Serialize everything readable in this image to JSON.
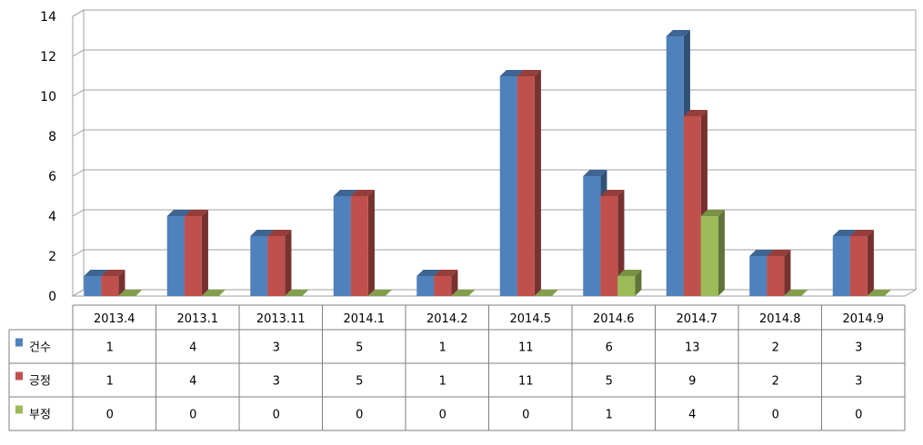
{
  "chart_data": {
    "type": "bar",
    "categories": [
      "2013.4",
      "2013.1",
      "2013.11",
      "2014.1",
      "2014.2",
      "2014.5",
      "2014.6",
      "2014.7",
      "2014.8",
      "2014.9"
    ],
    "series": [
      {
        "name": "건수",
        "values": [
          1,
          4,
          3,
          5,
          1,
          11,
          6,
          13,
          2,
          3
        ],
        "color": "#4f81bd"
      },
      {
        "name": "긍정",
        "values": [
          1,
          4,
          3,
          5,
          1,
          11,
          5,
          9,
          2,
          3
        ],
        "color": "#c0504d"
      },
      {
        "name": "부정",
        "values": [
          0,
          0,
          0,
          0,
          0,
          0,
          1,
          4,
          0,
          0
        ],
        "color": "#9bbb59"
      }
    ],
    "ylim": [
      0,
      14
    ],
    "yticks": [
      0,
      2,
      4,
      6,
      8,
      10,
      12,
      14
    ],
    "title": "",
    "xlabel": "",
    "ylabel": "",
    "grid": true,
    "style": "3d-clustered-column",
    "legend": "data-table"
  }
}
